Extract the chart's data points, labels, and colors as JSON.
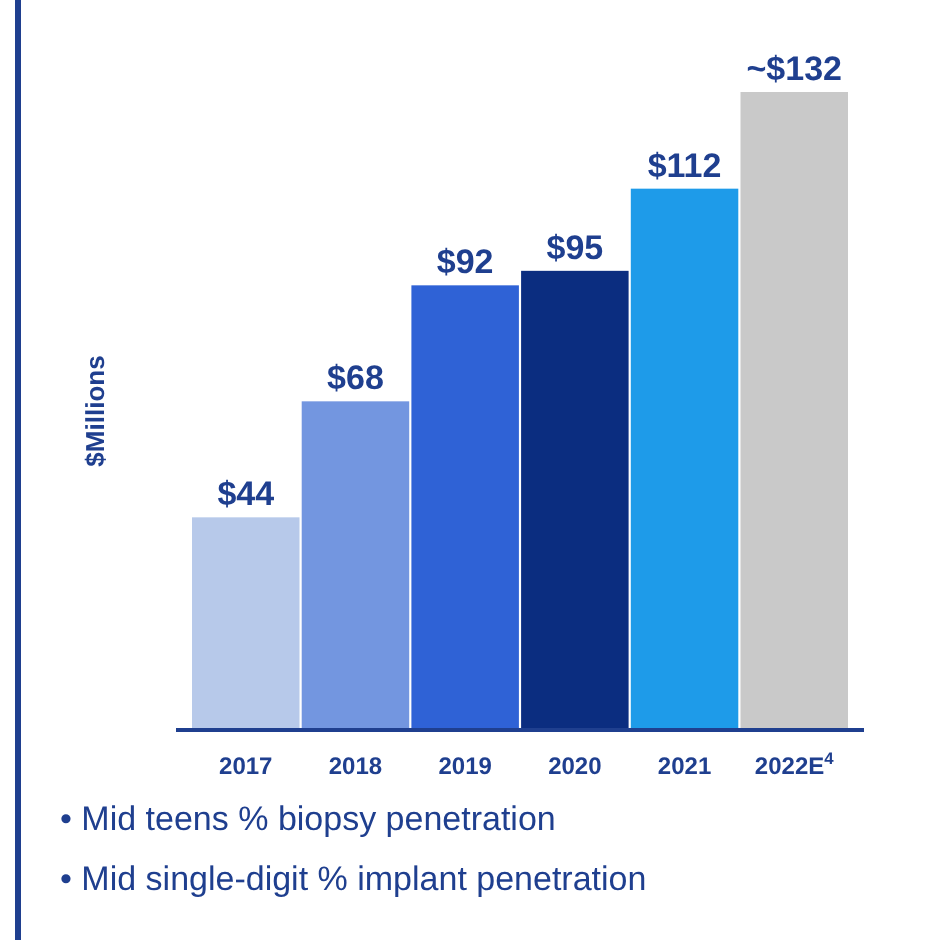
{
  "chart_data": {
    "type": "bar",
    "ylabel": "$Millions",
    "categories": [
      "2017",
      "2018",
      "2019",
      "2020",
      "2021",
      "2022E$^{4}$"
    ],
    "values": [
      44,
      68,
      92,
      95,
      112,
      132
    ],
    "colors": [
      "#b7c9ea",
      "#7396e0",
      "#2f62d6",
      "#0b2d80",
      "#1e9be9",
      "#c9c9c9"
    ],
    "value_labels": [
      "$44",
      "$68",
      "$92",
      "$95",
      "$112",
      "~$132"
    ],
    "annotations": [
      "• Mid teens % biopsy penetration",
      "• Mid single-digit % implant penetration"
    ]
  }
}
